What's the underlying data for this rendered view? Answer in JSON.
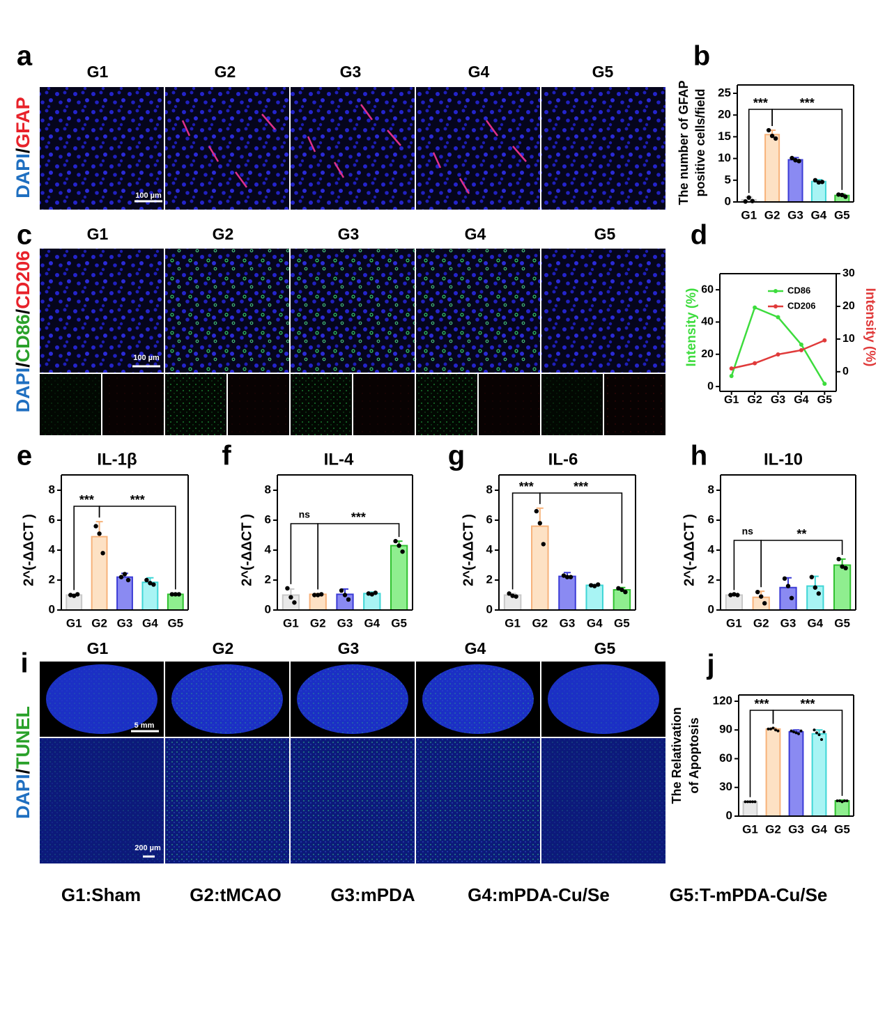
{
  "image_panels": [
    {
      "letter": "a",
      "groups": [
        "G1",
        "G2",
        "G3",
        "G4",
        "G5"
      ],
      "stain": [
        "DAPI",
        "/",
        "GFAP"
      ],
      "scale_bars": [
        "100 µm"
      ]
    },
    {
      "letter": "c",
      "groups": [
        "G1",
        "G2",
        "G3",
        "G4",
        "G5"
      ],
      "stain": [
        "DAPI",
        "/",
        "CD86",
        "/",
        "CD206"
      ],
      "scale_bars": [
        "100 µm"
      ]
    },
    {
      "letter": "i",
      "groups": [
        "G1",
        "G2",
        "G3",
        "G4",
        "G5"
      ],
      "stain": [
        "DAPI",
        "/",
        "TUNEL"
      ],
      "scale_bars": [
        "5 mm",
        "200 µm"
      ]
    }
  ],
  "chart_data": [
    {
      "letter": "b",
      "type": "bar",
      "ylabel": [
        "The number of GFAP",
        "positive cells/field"
      ],
      "categories": [
        "G1",
        "G2",
        "G3",
        "G4",
        "G5"
      ],
      "values": [
        0.5,
        15.5,
        9.7,
        4.7,
        1.5
      ],
      "errors": [
        0.6,
        1.0,
        0.5,
        0.4,
        0.3
      ],
      "points": [
        [
          0.1,
          1.0,
          0.2
        ],
        [
          16.5,
          15.2,
          14.6
        ],
        [
          10.1,
          9.6,
          9.4
        ],
        [
          5.0,
          4.5,
          4.6
        ],
        [
          1.7,
          1.6,
          1.2
        ]
      ],
      "colors": [
        "#e8e8e8",
        "#fde1c4",
        "#8a8af2",
        "#a8f4f4",
        "#8fee8f"
      ],
      "edgecolors": [
        "#c8c8c8",
        "#f7b27a",
        "#3b3bd6",
        "#3fd6d6",
        "#2fc12f"
      ],
      "ylim": [
        0,
        25
      ],
      "yticks": [
        0,
        5,
        10,
        15,
        20,
        25
      ],
      "annotations": [
        "***",
        "***"
      ]
    },
    {
      "letter": "d",
      "type": "line",
      "categories": [
        "G1",
        "G2",
        "G3",
        "G4",
        "G5"
      ],
      "series": [
        {
          "name": "CD86",
          "color": "#3ddc3d",
          "values": [
            6.5,
            49,
            43,
            26,
            1.7
          ]
        },
        {
          "name": "CD206",
          "color": "#e03a3a",
          "values": [
            1,
            2.6,
            5.3,
            6.6,
            9.6
          ],
          "axis": "y2"
        }
      ],
      "ylabel": "Intensity (%)",
      "y2label": "Intensity (%)",
      "ylim": [
        -3,
        70
      ],
      "yticks": [
        0,
        20,
        40,
        60
      ],
      "y2lim": [
        -6,
        30
      ],
      "y2ticks": [
        0,
        10,
        20,
        30
      ],
      "legend": "upper right"
    },
    {
      "letter": "e",
      "type": "bar",
      "title": "IL-1β",
      "ylabel": "2^(-ΔΔCT )",
      "categories": [
        "G1",
        "G2",
        "G3",
        "G4",
        "G5"
      ],
      "values": [
        1.0,
        4.9,
        2.2,
        1.85,
        1.05
      ],
      "errors": [
        0.05,
        1.0,
        0.25,
        0.3,
        0.05
      ],
      "points": [
        [
          1.0,
          0.95,
          1.05
        ],
        [
          5.6,
          5.1,
          3.8
        ],
        [
          2.2,
          2.4,
          2.0
        ],
        [
          2.0,
          1.8,
          1.7
        ],
        [
          1.05,
          1.05,
          1.05
        ]
      ],
      "colors": [
        "#e8e8e8",
        "#fde1c4",
        "#8a8af2",
        "#a8f4f4",
        "#8fee8f"
      ],
      "edgecolors": [
        "#c8c8c8",
        "#f7b27a",
        "#3b3bd6",
        "#3fd6d6",
        "#2fc12f"
      ],
      "ylim": [
        0,
        8
      ],
      "yticks": [
        0,
        2,
        4,
        6,
        8
      ],
      "annotations": [
        "***",
        "***"
      ]
    },
    {
      "letter": "f",
      "type": "bar",
      "title": "IL-4",
      "ylabel": "2^(-ΔΔCT )",
      "categories": [
        "G1",
        "G2",
        "G3",
        "G4",
        "G5"
      ],
      "values": [
        1.0,
        1.05,
        1.05,
        1.1,
        4.3
      ],
      "errors": [
        0.4,
        0.05,
        0.35,
        0.1,
        0.3
      ],
      "points": [
        [
          1.45,
          0.85,
          0.5
        ],
        [
          1.0,
          1.0,
          1.05
        ],
        [
          1.3,
          1.0,
          0.7
        ],
        [
          1.1,
          1.05,
          1.15
        ],
        [
          4.6,
          4.3,
          3.9
        ]
      ],
      "colors": [
        "#e8e8e8",
        "#fde1c4",
        "#8a8af2",
        "#a8f4f4",
        "#8fee8f"
      ],
      "edgecolors": [
        "#c8c8c8",
        "#f7b27a",
        "#3b3bd6",
        "#3fd6d6",
        "#2fc12f"
      ],
      "ylim": [
        0,
        8
      ],
      "yticks": [
        0,
        2,
        4,
        6,
        8
      ],
      "annotations": [
        "ns",
        "***"
      ]
    },
    {
      "letter": "g",
      "type": "bar",
      "title": "IL-6",
      "ylabel": "2^(-ΔΔCT )",
      "categories": [
        "G1",
        "G2",
        "G3",
        "G4",
        "G5"
      ],
      "values": [
        1.0,
        5.6,
        2.25,
        1.65,
        1.35
      ],
      "errors": [
        0.1,
        1.2,
        0.25,
        0.05,
        0.15
      ],
      "points": [
        [
          1.1,
          0.95,
          0.9
        ],
        [
          6.6,
          5.8,
          4.4
        ],
        [
          2.3,
          2.2,
          2.2
        ],
        [
          1.65,
          1.6,
          1.7
        ],
        [
          1.45,
          1.35,
          1.2
        ]
      ],
      "colors": [
        "#e8e8e8",
        "#fde1c4",
        "#8a8af2",
        "#a8f4f4",
        "#8fee8f"
      ],
      "edgecolors": [
        "#c8c8c8",
        "#f7b27a",
        "#3b3bd6",
        "#3fd6d6",
        "#2fc12f"
      ],
      "ylim": [
        0,
        8
      ],
      "yticks": [
        0,
        2,
        4,
        6,
        8
      ],
      "annotations": [
        "***",
        "***"
      ]
    },
    {
      "letter": "h",
      "type": "bar",
      "title": "IL-10",
      "ylabel": "2^(-ΔΔCT )",
      "categories": [
        "G1",
        "G2",
        "G3",
        "G4",
        "G5"
      ],
      "values": [
        1.0,
        0.85,
        1.5,
        1.6,
        3.0
      ],
      "errors": [
        0.05,
        0.4,
        0.65,
        0.65,
        0.4
      ],
      "points": [
        [
          1.0,
          1.05,
          1.0
        ],
        [
          1.2,
          0.9,
          0.45
        ],
        [
          2.1,
          1.6,
          0.8
        ],
        [
          2.2,
          1.5,
          1.1
        ],
        [
          3.4,
          2.9,
          2.8
        ]
      ],
      "colors": [
        "#e8e8e8",
        "#fde1c4",
        "#8a8af2",
        "#a8f4f4",
        "#8fee8f"
      ],
      "edgecolors": [
        "#c8c8c8",
        "#f7b27a",
        "#3b3bd6",
        "#3fd6d6",
        "#2fc12f"
      ],
      "ylim": [
        0,
        8
      ],
      "yticks": [
        0,
        2,
        4,
        6,
        8
      ],
      "annotations": [
        "ns",
        "**"
      ]
    },
    {
      "letter": "j",
      "type": "bar",
      "ylabel": [
        "The Relativation",
        "of Apoptosis"
      ],
      "categories": [
        "G1",
        "G2",
        "G3",
        "G4",
        "G5"
      ],
      "values": [
        15,
        91,
        88,
        86,
        16
      ],
      "errors": [
        0.5,
        1,
        2,
        4,
        0.8
      ],
      "points": [
        [
          15,
          15,
          15,
          15,
          15
        ],
        [
          91,
          91,
          92,
          90,
          89
        ],
        [
          89,
          88,
          87,
          86,
          89
        ],
        [
          90,
          87,
          85,
          80,
          88
        ],
        [
          16,
          16,
          15,
          16,
          16
        ]
      ],
      "colors": [
        "#e8e8e8",
        "#fde1c4",
        "#8a8af2",
        "#a8f4f4",
        "#8fee8f"
      ],
      "edgecolors": [
        "#c8c8c8",
        "#f7b27a",
        "#3b3bd6",
        "#3fd6d6",
        "#2fc12f"
      ],
      "ylim": [
        0,
        120
      ],
      "yticks": [
        0,
        30,
        60,
        90,
        120
      ],
      "annotations": [
        "***",
        "***"
      ]
    }
  ],
  "group_legend": [
    "G1:Sham",
    "G2:tMCAO",
    "G3:mPDA",
    "G4:mPDA-Cu/Se",
    "G5:T-mPDA-Cu/Se"
  ]
}
